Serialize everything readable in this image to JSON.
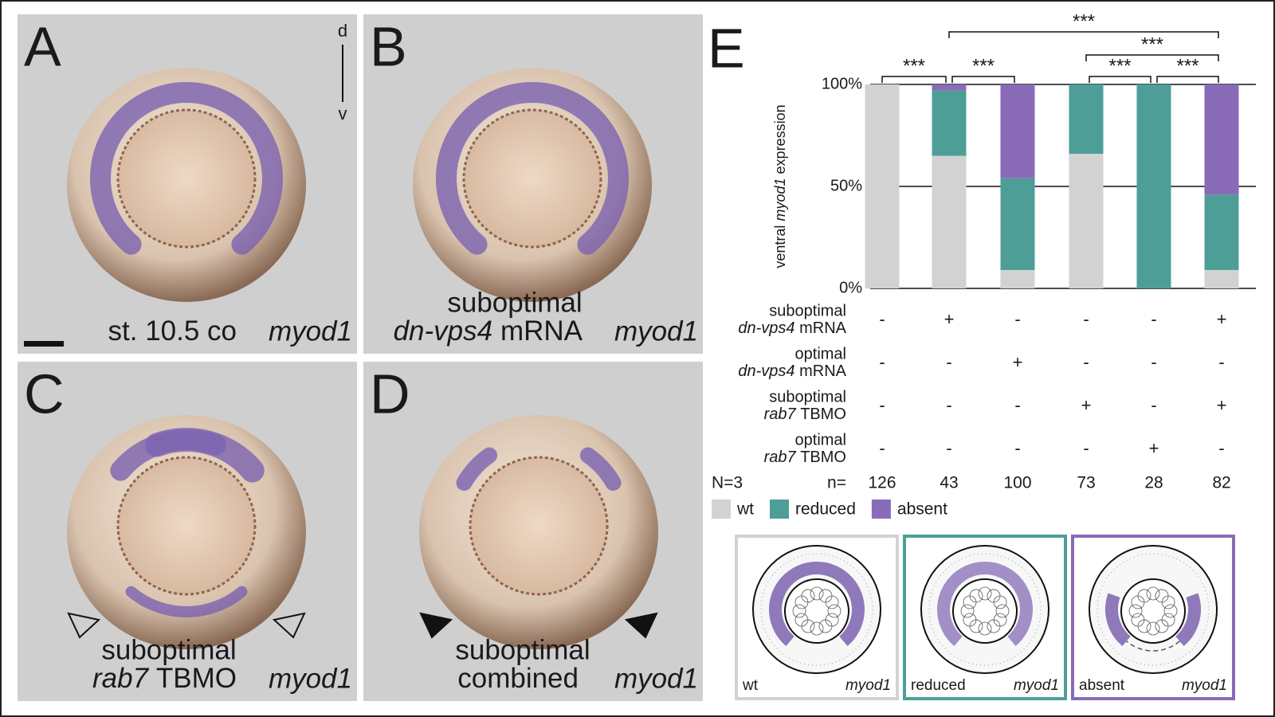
{
  "panels": [
    {
      "letter": "A",
      "caption": "st. 10.5 co",
      "gene": "myod1",
      "axis_top": "d",
      "axis_bottom": "v"
    },
    {
      "letter": "B",
      "line1": "suboptimal",
      "caption_gene": "dn-vps4",
      "caption": "mRNA",
      "gene": "myod1"
    },
    {
      "letter": "C",
      "line1": "suboptimal",
      "caption_gene": "rab7",
      "caption": "TBMO",
      "gene": "myod1"
    },
    {
      "letter": "D",
      "line1": "suboptimal",
      "caption": "combined",
      "gene": "myod1"
    }
  ],
  "chart_data": {
    "type": "bar",
    "stacked": true,
    "letter": "E",
    "y_label": {
      "pre": "ventral",
      "gene": "myod1",
      "post": "expression"
    },
    "ylim": [
      0,
      100
    ],
    "yticks": [
      {
        "value": 0,
        "label": "0%"
      },
      {
        "value": 50,
        "label": "50%"
      },
      {
        "value": 100,
        "label": "100%"
      }
    ],
    "grid": true,
    "series": [
      {
        "name": "wt",
        "color": "#d2d2d2",
        "values": [
          100,
          65,
          9,
          66,
          0,
          9
        ]
      },
      {
        "name": "reduced",
        "color": "#4e9e98",
        "values": [
          0,
          32,
          45,
          34,
          100,
          37
        ]
      },
      {
        "name": "absent",
        "color": "#8a6bb8",
        "values": [
          0,
          3,
          46,
          0,
          0,
          54
        ]
      }
    ],
    "significance": [
      "***",
      "***",
      "***",
      "***",
      "***",
      "***"
    ],
    "treatments": [
      {
        "line1": "suboptimal",
        "gene": "dn-vps4",
        "rest": "mRNA",
        "marks": [
          "-",
          "+",
          "-",
          "-",
          "-",
          "+"
        ]
      },
      {
        "line1": "optimal",
        "gene": "dn-vps4",
        "rest": "mRNA",
        "marks": [
          "-",
          "-",
          "+",
          "-",
          "-",
          "-"
        ]
      },
      {
        "line1": "suboptimal",
        "gene": "rab7",
        "rest": "TBMO",
        "marks": [
          "-",
          "-",
          "-",
          "+",
          "-",
          "+"
        ]
      },
      {
        "line1": "optimal",
        "gene": "rab7",
        "rest": "TBMO",
        "marks": [
          "-",
          "-",
          "-",
          "-",
          "+",
          "-"
        ]
      }
    ],
    "N_label": "N=3",
    "n_label": "n=",
    "n": [
      126,
      43,
      100,
      73,
      28,
      82
    ]
  },
  "schematics": [
    {
      "label": "wt",
      "gene": "myod1"
    },
    {
      "label": "reduced",
      "gene": "myod1"
    },
    {
      "label": "absent",
      "gene": "myod1"
    }
  ]
}
